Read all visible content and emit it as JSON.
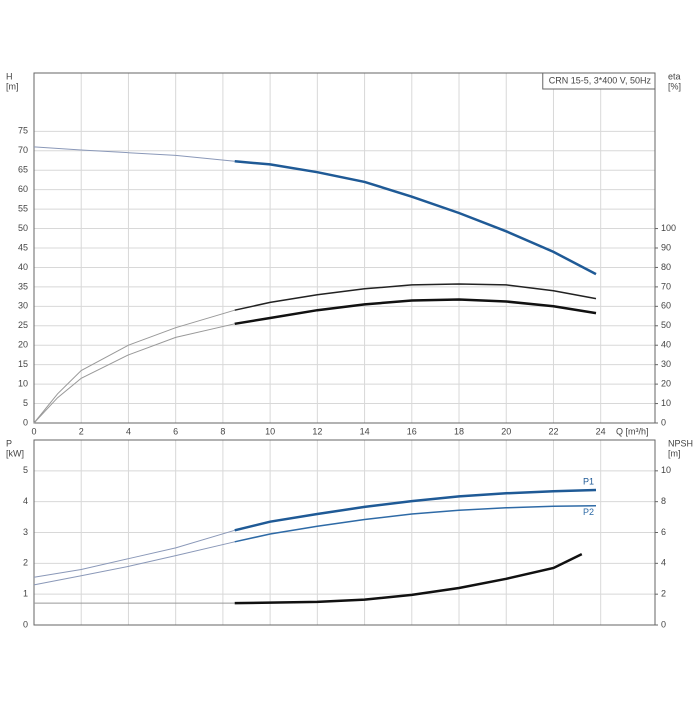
{
  "chart_data": [
    {
      "type": "line",
      "title": "CRN 15-5, 3*400 V, 50Hz",
      "xlabel": "Q [m³/h]",
      "ylabel": [
        "H",
        "[m]"
      ],
      "y2label": [
        "eta",
        "[%]"
      ],
      "xlim": [
        0,
        26.3
      ],
      "xticks": [
        0,
        2,
        4,
        6,
        8,
        10,
        12,
        14,
        16,
        18,
        20,
        22,
        24
      ],
      "show_xtick_labels": true,
      "ylim": [
        0,
        90
      ],
      "yticks": [
        0,
        5,
        10,
        15,
        20,
        25,
        30,
        35,
        40,
        45,
        50,
        55,
        60,
        65,
        70,
        75
      ],
      "y2lim": [
        0,
        180
      ],
      "y2ticks": [
        0,
        10,
        20,
        30,
        40,
        50,
        60,
        70,
        80,
        90,
        100
      ],
      "grid": true,
      "series": [
        {
          "color": "#8a98b8",
          "width": 1,
          "x": [
            0,
            2,
            4,
            6,
            8.5
          ],
          "values": [
            71,
            70.2,
            69.5,
            68.8,
            67.3
          ]
        },
        {
          "color": "#1f5a96",
          "width": 2.5,
          "x": [
            8.5,
            10,
            12,
            14,
            16,
            18,
            20,
            22,
            23.8
          ],
          "values": [
            67.3,
            66.5,
            64.5,
            62,
            58.2,
            54,
            49.3,
            44,
            38.3
          ]
        },
        {
          "color": "#999999",
          "width": 1,
          "axis": "y2",
          "x": [
            0,
            1,
            2,
            4,
            6,
            8.5
          ],
          "values": [
            0,
            15,
            27,
            40,
            49,
            58
          ]
        },
        {
          "color": "#222222",
          "width": 1.5,
          "axis": "y2",
          "x": [
            8.5,
            10,
            12,
            14,
            16,
            18,
            20,
            22,
            23.8
          ],
          "values": [
            58,
            62,
            66,
            69,
            71,
            71.5,
            71,
            68,
            64
          ]
        },
        {
          "color": "#999999",
          "width": 1,
          "axis": "y2",
          "x": [
            0,
            1,
            2,
            4,
            6,
            8.5
          ],
          "values": [
            0,
            13,
            23,
            35,
            44,
            51
          ]
        },
        {
          "color": "#111111",
          "width": 2.5,
          "axis": "y2",
          "x": [
            8.5,
            10,
            12,
            14,
            16,
            18,
            20,
            22,
            23.8
          ],
          "values": [
            51,
            54,
            58,
            61,
            63,
            63.5,
            62.5,
            60,
            56.5
          ]
        }
      ]
    },
    {
      "type": "line",
      "ylabel": [
        "P",
        "[kW]"
      ],
      "y2label": [
        "NPSH",
        "[m]"
      ],
      "xlim": [
        0,
        26.3
      ],
      "xticks": [
        0,
        2,
        4,
        6,
        8,
        10,
        12,
        14,
        16,
        18,
        20,
        22,
        24
      ],
      "show_xtick_labels": false,
      "ylim": [
        0,
        6
      ],
      "yticks": [
        0,
        1,
        2,
        3,
        4,
        5
      ],
      "y2lim": [
        0,
        12
      ],
      "y2ticks": [
        0,
        2,
        4,
        6,
        8,
        10
      ],
      "grid": true,
      "series": [
        {
          "color": "#8a98b8",
          "width": 1,
          "x": [
            0,
            2,
            4,
            6,
            8.5
          ],
          "values": [
            1.55,
            1.8,
            2.15,
            2.5,
            3.07
          ]
        },
        {
          "name": "P1",
          "color": "#1f5a96",
          "width": 2.5,
          "x": [
            8.5,
            10,
            12,
            14,
            16,
            18,
            20,
            22,
            23.8
          ],
          "values": [
            3.07,
            3.35,
            3.6,
            3.83,
            4.02,
            4.17,
            4.27,
            4.34,
            4.38
          ]
        },
        {
          "color": "#8a98b8",
          "width": 1,
          "x": [
            0,
            2,
            4,
            6,
            8.5
          ],
          "values": [
            1.3,
            1.6,
            1.9,
            2.25,
            2.7
          ]
        },
        {
          "name": "P2",
          "color": "#2e6aa6",
          "width": 1.5,
          "x": [
            8.5,
            10,
            12,
            14,
            16,
            18,
            20,
            22,
            23.8
          ],
          "values": [
            2.7,
            2.95,
            3.2,
            3.42,
            3.6,
            3.72,
            3.8,
            3.85,
            3.87
          ]
        },
        {
          "color": "#999999",
          "width": 1,
          "axis": "y2",
          "x": [
            0,
            4,
            8.5
          ],
          "values": [
            1.42,
            1.42,
            1.42
          ]
        },
        {
          "color": "#111111",
          "width": 2.5,
          "axis": "y2",
          "x": [
            8.5,
            10,
            12,
            14,
            16,
            18,
            20,
            22,
            23.2
          ],
          "values": [
            1.42,
            1.45,
            1.5,
            1.65,
            1.95,
            2.4,
            3.0,
            3.7,
            4.6
          ]
        }
      ]
    }
  ]
}
